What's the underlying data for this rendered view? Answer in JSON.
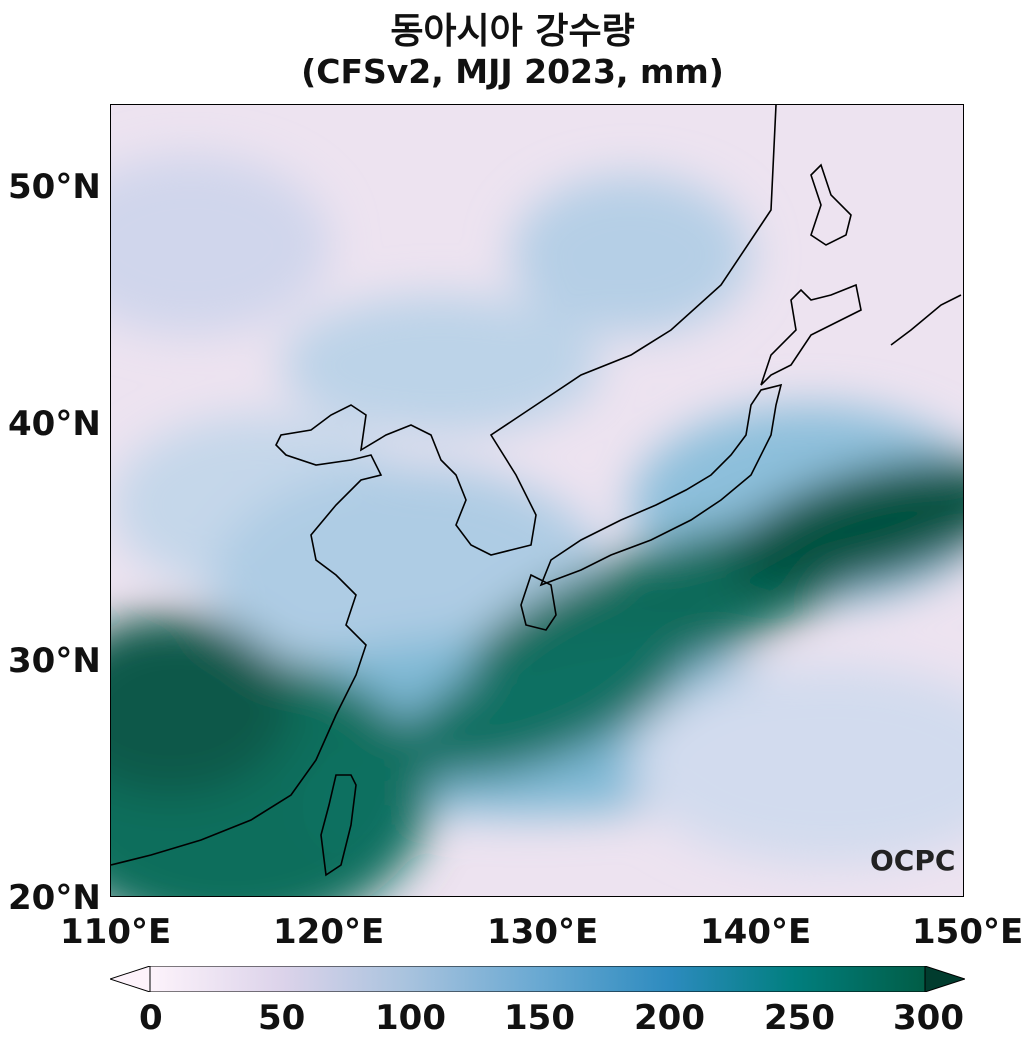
{
  "title": {
    "line1": "동아시아 강수량",
    "line2": "(CFSv2, MJJ 2023, mm)"
  },
  "map": {
    "lon_range": [
      110,
      150
    ],
    "lat_range": [
      20,
      53.5
    ],
    "lat_ticks": [
      "50°N",
      "40°N",
      "30°N",
      "20°N"
    ],
    "lon_ticks": [
      "110°E",
      "120°E",
      "130°E",
      "140°E",
      "150°E"
    ],
    "wettest_regions": [
      "Southern Japan",
      "South China",
      "Pacific belt south of Japan"
    ],
    "driest_regions": [
      "Northeast China",
      "Sea of Japan",
      "Okhotsk region"
    ]
  },
  "colorbar": {
    "min": 0,
    "max": 300,
    "ticks": [
      "0",
      "50",
      "100",
      "150",
      "200",
      "250",
      "300"
    ],
    "colors": [
      "#fdf3fb",
      "#dcd3ea",
      "#a9c3de",
      "#6aa9d2",
      "#2d8bbf",
      "#017f7f",
      "#015d46",
      "#013c2e"
    ]
  },
  "logo": "OCPC"
}
